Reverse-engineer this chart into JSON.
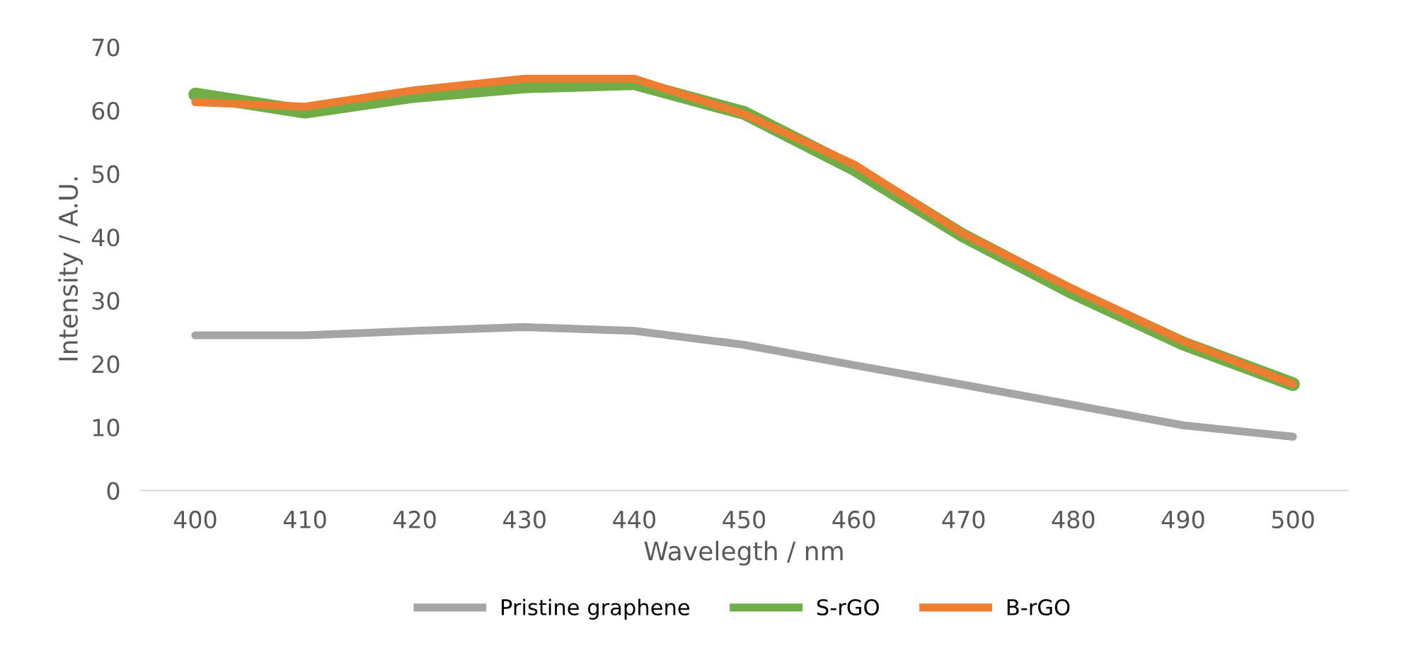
{
  "chart_data": {
    "type": "line",
    "xlabel": "Wavelegth / nm",
    "ylabel": "Intensity / A.U.",
    "categories": [
      "400",
      "410",
      "420",
      "430",
      "440",
      "450",
      "460",
      "470",
      "480",
      "490",
      "500"
    ],
    "series": [
      {
        "name": "Pristine graphene",
        "color": "#a5a5a5",
        "values": [
          24.5,
          24.5,
          25.2,
          25.8,
          25.2,
          23.0,
          19.8,
          16.7,
          13.5,
          10.3,
          8.5
        ]
      },
      {
        "name": "S-rGO",
        "color": "#70ad47",
        "values": [
          62.5,
          59.8,
          62.3,
          63.8,
          64.3,
          59.6,
          50.8,
          40.2,
          31.2,
          23.2,
          16.8
        ]
      },
      {
        "name": "B-rGO",
        "color": "#ed7d31",
        "values": [
          61.3,
          60.6,
          63.2,
          65.0,
          65.0,
          59.4,
          51.5,
          40.5,
          31.8,
          23.6,
          16.8
        ]
      }
    ],
    "ylim": [
      0,
      70
    ],
    "yticks": [
      0,
      10,
      20,
      30,
      40,
      50,
      60,
      70
    ],
    "grid": false,
    "legend": "bottom",
    "marker": "none",
    "line_style": "solid"
  }
}
